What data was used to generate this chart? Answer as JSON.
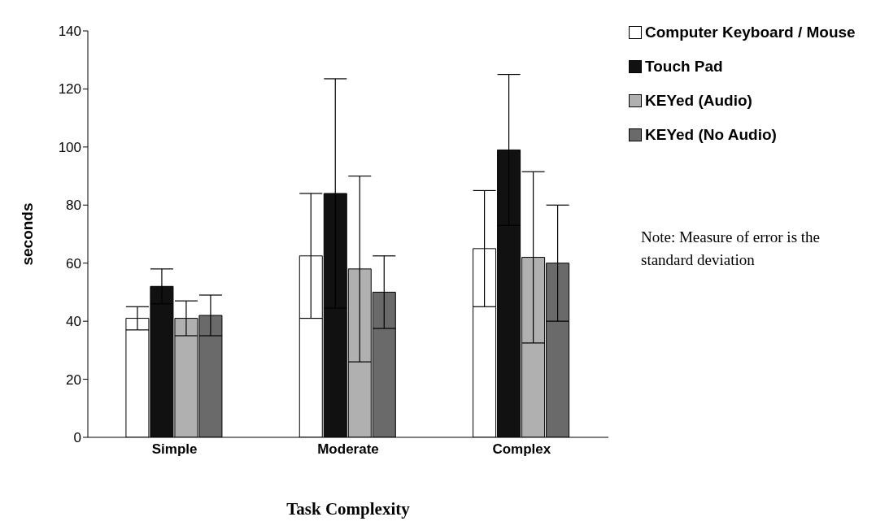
{
  "chart_data": {
    "type": "bar",
    "xlabel": "Task Complexity",
    "ylabel": "seconds",
    "categories": [
      "Simple",
      "Moderate",
      "Complex"
    ],
    "series": [
      {
        "name": "Computer Keyboard / Mouse",
        "color": "#ffffff",
        "values": [
          41,
          62.5,
          65
        ],
        "errors": [
          4,
          21.5,
          20
        ]
      },
      {
        "name": "Touch Pad",
        "color": "#111111",
        "values": [
          52,
          84,
          99
        ],
        "errors": [
          6,
          39.5,
          26
        ]
      },
      {
        "name": "KEYed (Audio)",
        "color": "#b0b0b0",
        "values": [
          41,
          58,
          62
        ],
        "errors": [
          6,
          32,
          29.5
        ]
      },
      {
        "name": "KEYed (No Audio)",
        "color": "#6a6a6a",
        "values": [
          42,
          50,
          60
        ],
        "errors": [
          7,
          12.5,
          20
        ]
      }
    ],
    "ylim": [
      0,
      140
    ],
    "yticks": [
      0,
      20,
      40,
      60,
      80,
      100,
      120,
      140
    ],
    "grid": false,
    "legend": "top right",
    "annotations": [
      "Note: Measure of error is the standard deviation"
    ]
  }
}
